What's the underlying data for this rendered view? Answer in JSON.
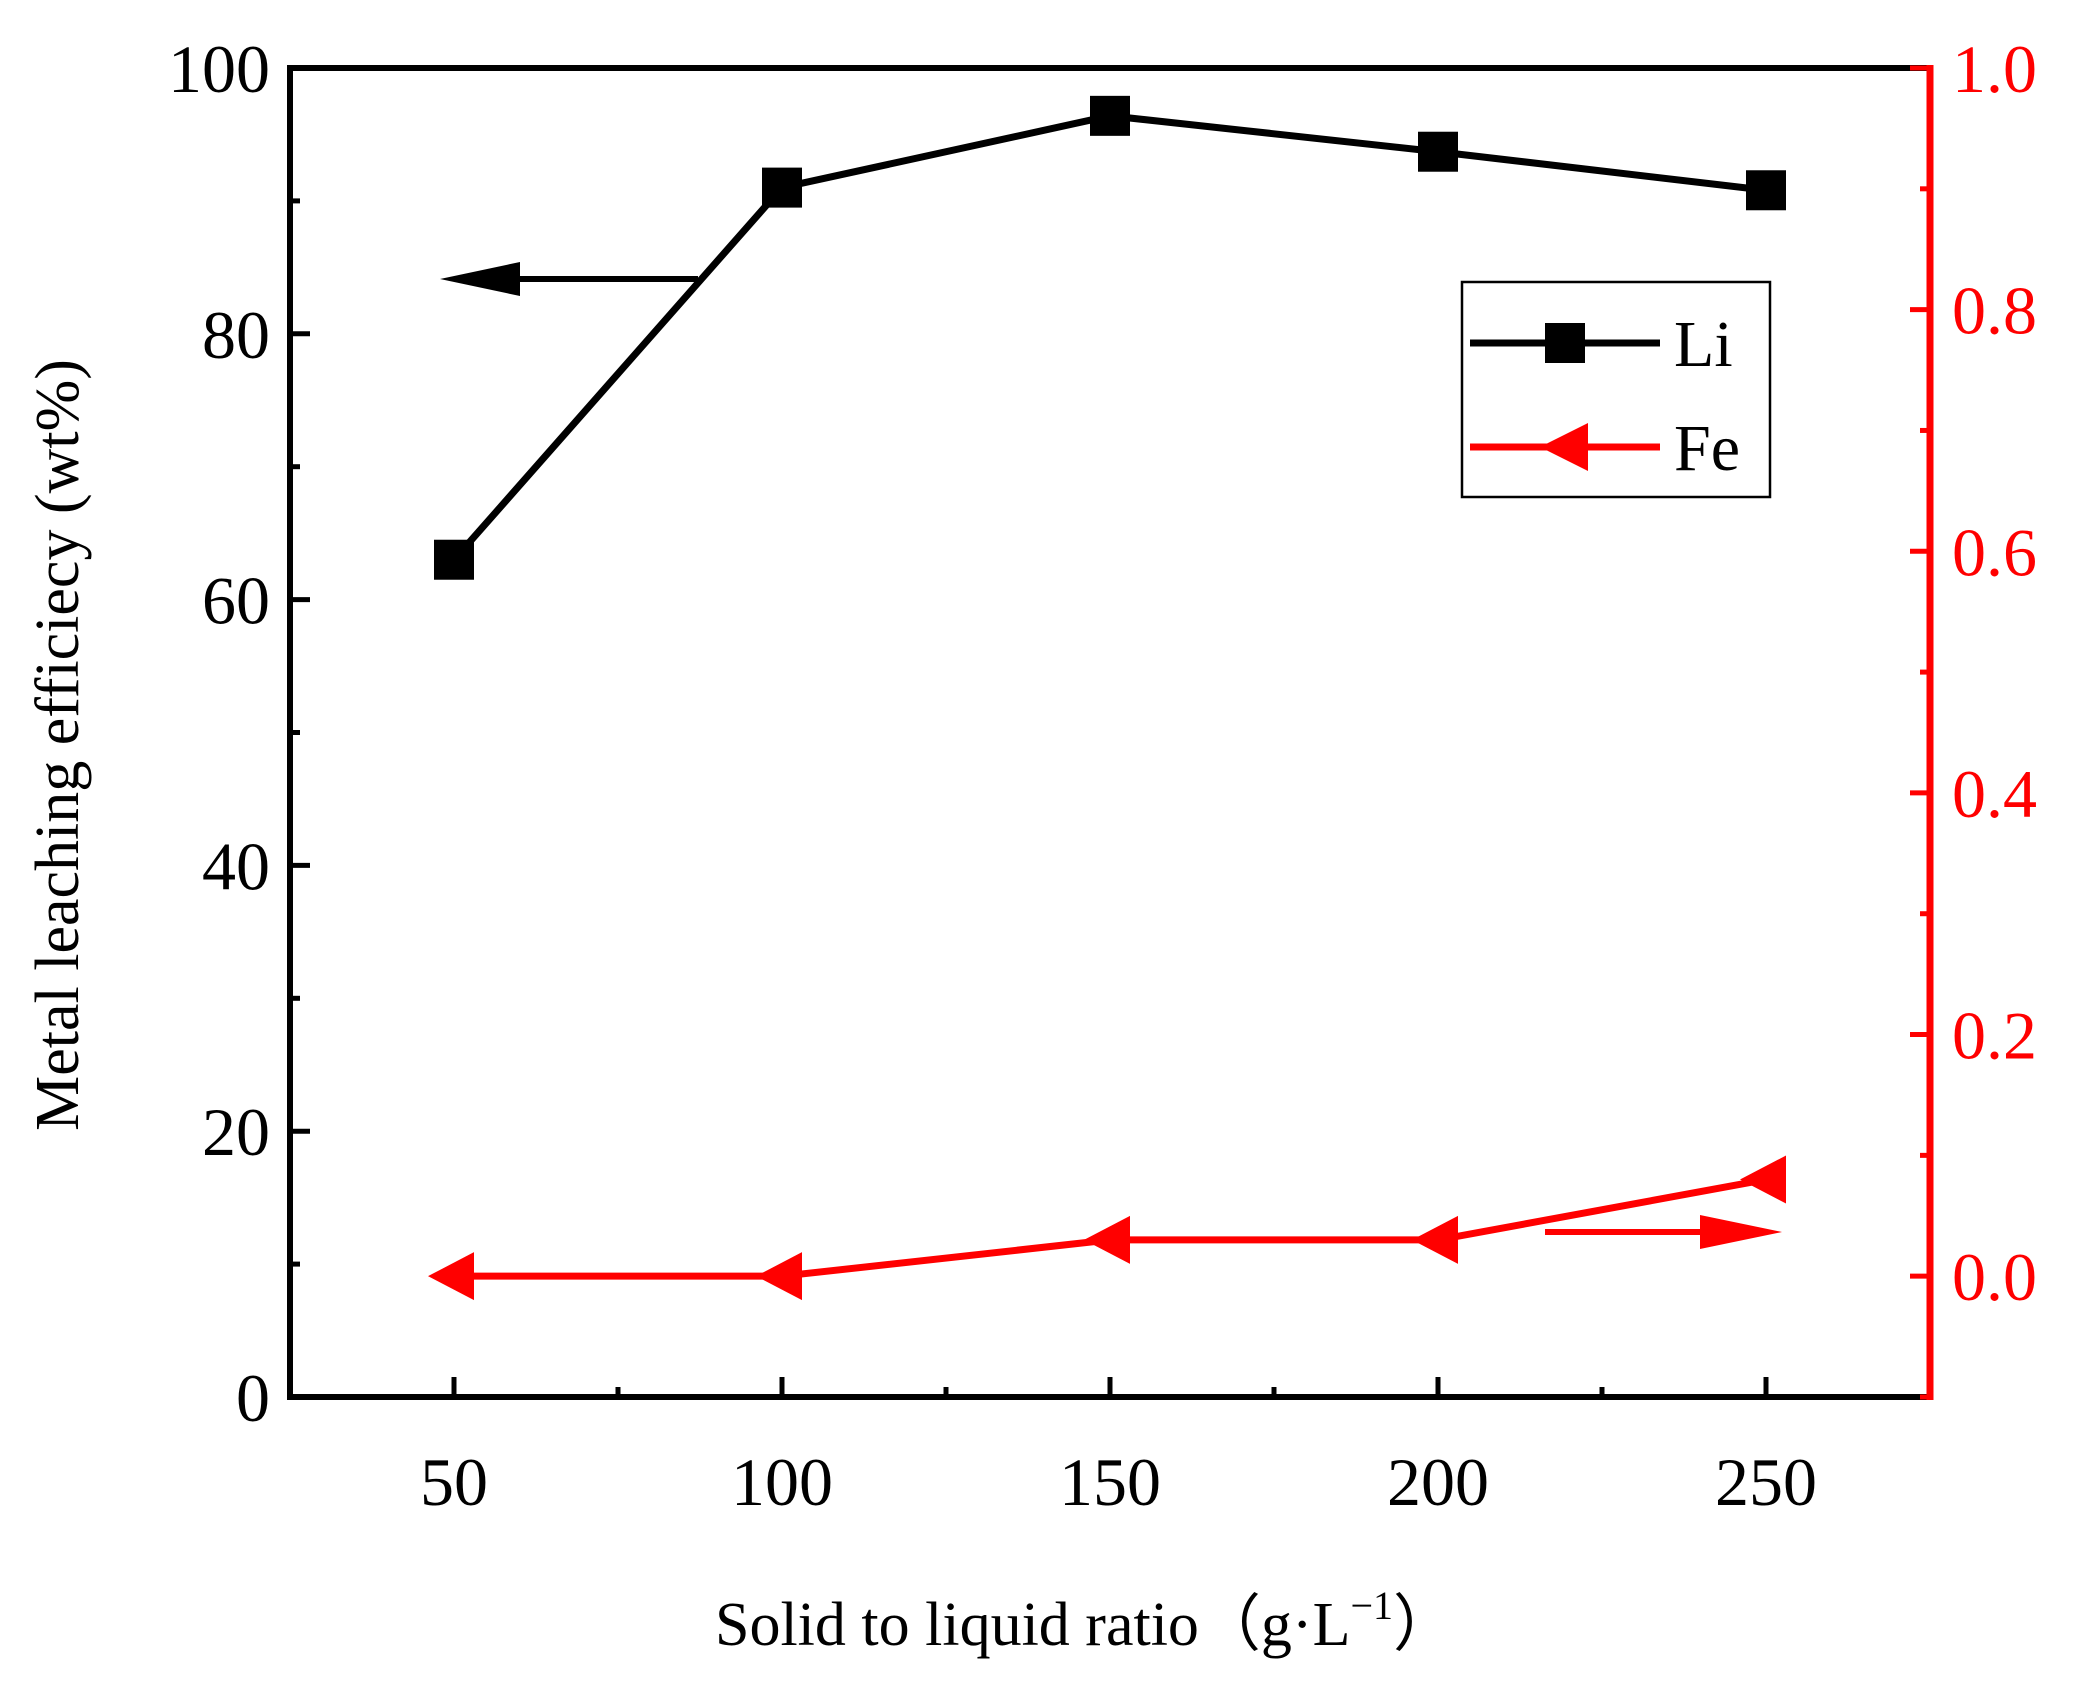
{
  "chart_data": {
    "type": "line",
    "x": [
      50,
      100,
      150,
      200,
      250
    ],
    "xlim": [
      25,
      275
    ],
    "xticks": [
      50,
      100,
      150,
      200,
      250
    ],
    "xlabel": "Solid to liquid ratio（g·L",
    "xlabel_sup": "−1",
    "xlabel_close": "）",
    "ylabel": "Metal leaching efficiecy (wt%)",
    "ylim": [
      0,
      100
    ],
    "yticks": [
      0,
      20,
      40,
      60,
      80,
      100
    ],
    "y2lim": [
      -0.1,
      1.0
    ],
    "y2ticks": [
      "0.0",
      "0.2",
      "0.4",
      "0.6",
      "0.8",
      "1.0"
    ],
    "grid": false,
    "legend_position": "top-right",
    "series": [
      {
        "name": "Li",
        "axis": "left",
        "color": "#000000",
        "marker": "square",
        "values": [
          63.0,
          91.0,
          96.4,
          93.7,
          90.8
        ]
      },
      {
        "name": "Fe",
        "axis": "right",
        "color": "#ff0000",
        "marker": "left-triangle",
        "values": [
          0.0,
          0.0,
          0.03,
          0.03,
          0.08
        ]
      }
    ],
    "annotations": [
      {
        "type": "arrow",
        "direction": "left",
        "points_to_axis": "left",
        "series": "Li"
      },
      {
        "type": "arrow",
        "direction": "right",
        "points_to_axis": "right",
        "series": "Fe"
      }
    ]
  }
}
